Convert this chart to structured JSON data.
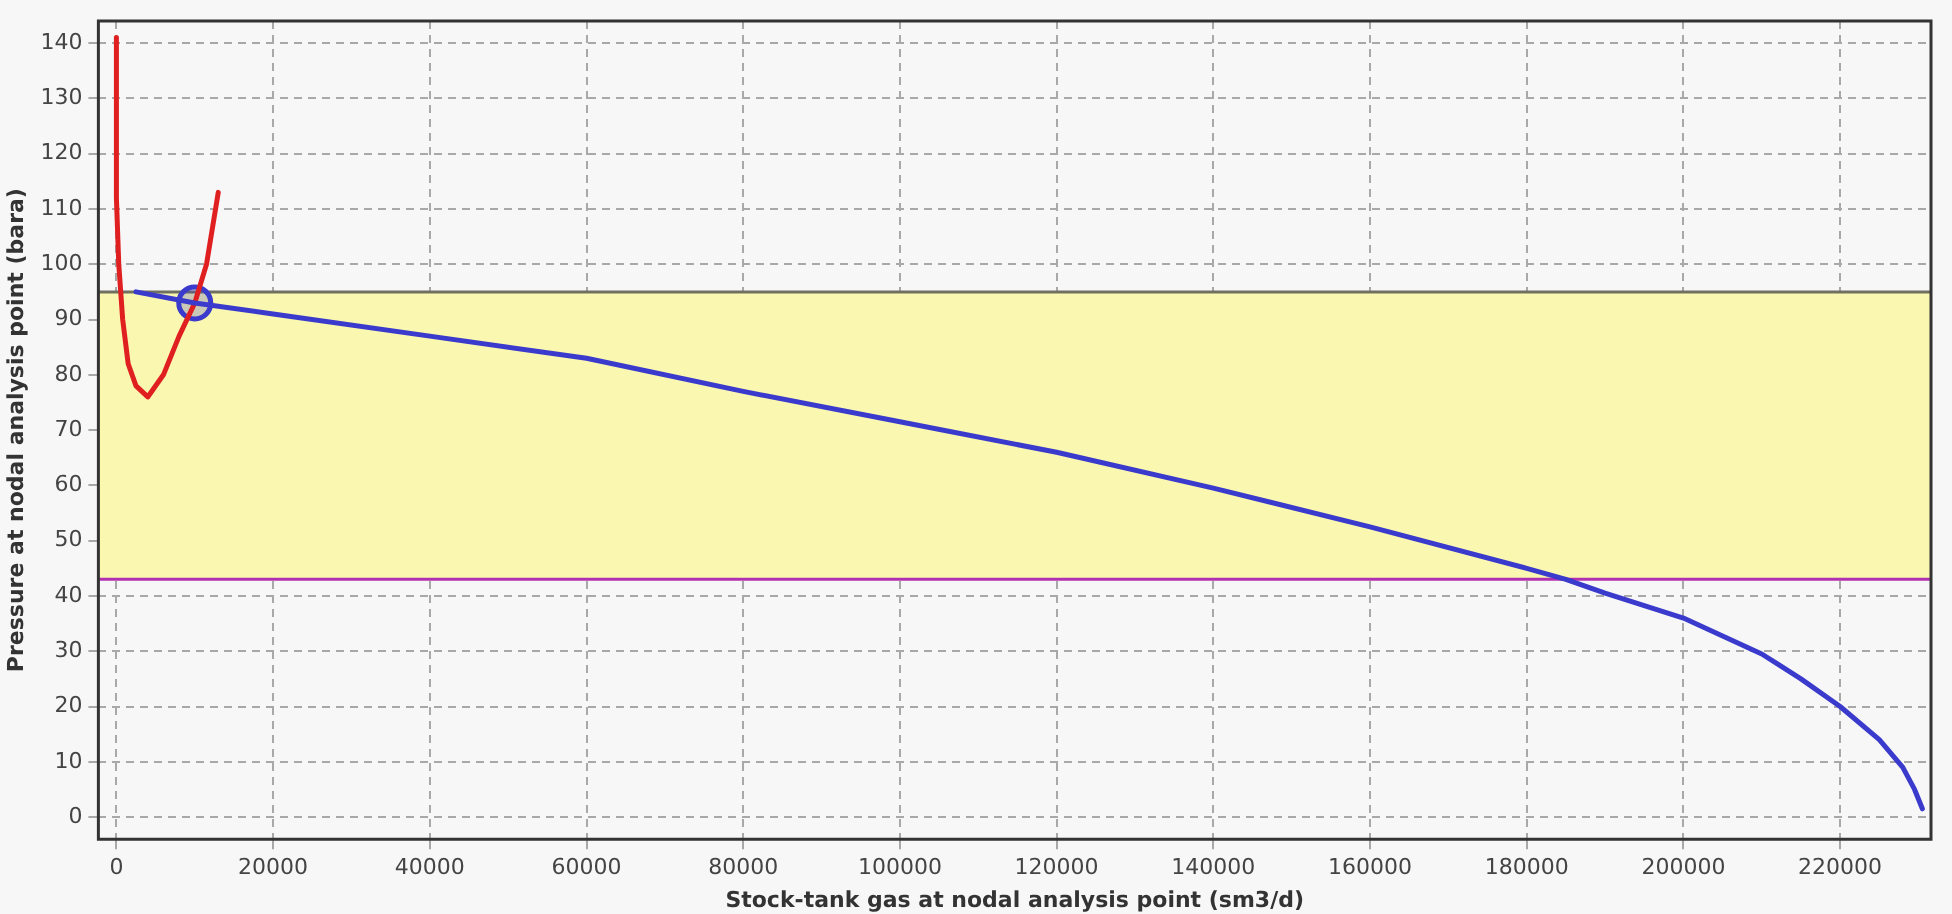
{
  "chart_data": {
    "type": "line",
    "xlabel": "Stock-tank gas at nodal analysis point (sm3/d)",
    "ylabel": "Pressure at nodal analysis point (bara)",
    "xlim": [
      -2300,
      231600
    ],
    "ylim": [
      -4,
      144
    ],
    "xticks": [
      0,
      20000,
      40000,
      60000,
      80000,
      100000,
      120000,
      140000,
      160000,
      180000,
      200000,
      220000
    ],
    "yticks": [
      0,
      10,
      20,
      30,
      40,
      50,
      60,
      70,
      80,
      90,
      100,
      110,
      120,
      130,
      140
    ],
    "grid": true,
    "legend": false,
    "marker": "none",
    "line_style": "solid",
    "bands": [
      {
        "axis": "y",
        "from": 43,
        "to": 95,
        "color": "#faf7b0"
      }
    ],
    "ref_lines": [
      {
        "axis": "y",
        "value": 95,
        "color": "#707060"
      },
      {
        "axis": "y",
        "value": 43,
        "color": "#b030b0"
      }
    ],
    "series": [
      {
        "color": "#3a3acc",
        "x": [
          2500,
          10000,
          20000,
          40000,
          60000,
          80000,
          100000,
          120000,
          140000,
          160000,
          180000,
          185000,
          190000,
          200000,
          210000,
          215000,
          220000,
          225000,
          228000,
          229500,
          230500
        ],
        "values": [
          95,
          93,
          91,
          87,
          83,
          77,
          71.5,
          66,
          59.5,
          52.5,
          45,
          43,
          40.5,
          36,
          29.5,
          25,
          20,
          14,
          9,
          5,
          1.5
        ]
      },
      {
        "color": "#e02020",
        "x": [
          0,
          0,
          300,
          800,
          1500,
          2500,
          4000,
          6000,
          8000,
          10000,
          11500,
          13000
        ],
        "values": [
          141,
          112,
          100,
          90,
          82,
          78,
          76,
          80,
          87,
          93,
          100,
          113
        ]
      },
      {
        "type": "scatter",
        "marker": "circle",
        "color": "#3a3acc",
        "x": [
          10000
        ],
        "values": [
          93
        ]
      }
    ]
  }
}
